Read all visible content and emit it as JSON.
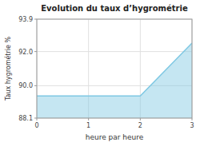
{
  "chart_data": {
    "type": "area",
    "title": "Evolution du taux d’hygrométrie",
    "xlabel": "heure par heure",
    "ylabel": "Taux hygrométrie %",
    "x": [
      0,
      2,
      3
    ],
    "values": [
      89.4,
      89.4,
      92.5
    ],
    "color": "#7ec8e3",
    "xlim": [
      0,
      3
    ],
    "ylim": [
      88.1,
      93.9
    ],
    "xticks": [
      0,
      1,
      2,
      3
    ],
    "yticks": [
      88.1,
      {
        "value": 90.0,
        "label": "90.0"
      },
      {
        "value": 92.0,
        "label": "92.0"
      },
      93.9
    ],
    "grid": true
  }
}
